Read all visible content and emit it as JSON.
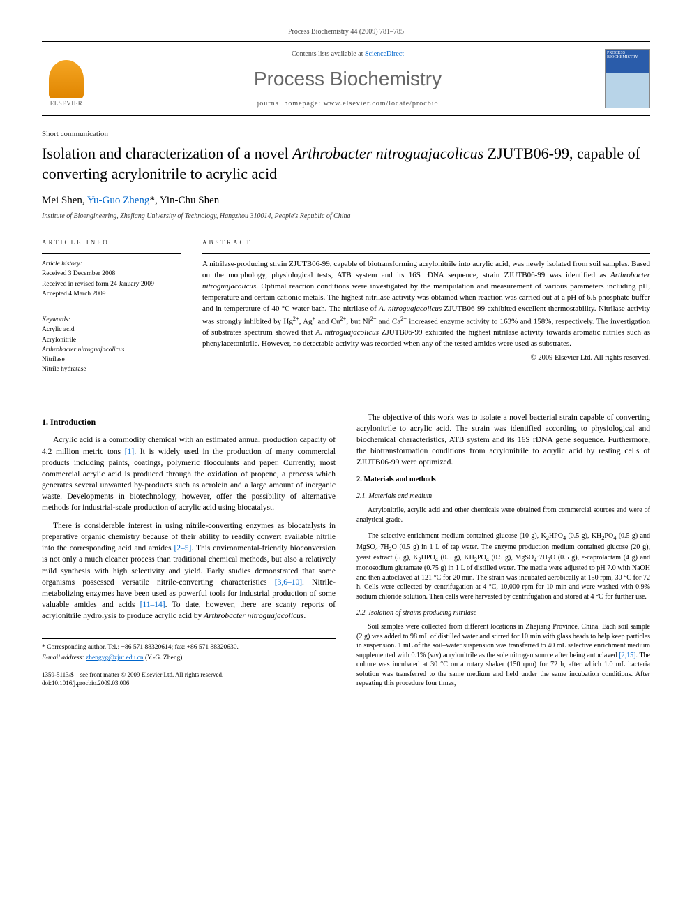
{
  "header": {
    "running_head": "Process Biochemistry 44 (2009) 781–785",
    "contents_prefix": "Contents lists available at ",
    "contents_link": "ScienceDirect",
    "journal_name": "Process Biochemistry",
    "homepage_prefix": "journal homepage: ",
    "homepage_url": "www.elsevier.com/locate/procbio",
    "elsevier_label": "ELSEVIER",
    "cover_label": "PROCESS BIOCHEMISTRY"
  },
  "article": {
    "type": "Short communication",
    "title_html": "Isolation and characterization of a novel <em>Arthrobacter nitroguajacolicus</em> ZJUTB06-99, capable of converting acrylonitrile to acrylic acid",
    "authors_html": "Mei Shen, <a href=\"#\">Yu-Guo Zheng</a>*, Yin-Chu Shen",
    "affiliation": "Institute of Bioengineering, Zhejiang University of Technology, Hangzhou 310014, People's Republic of China"
  },
  "article_info": {
    "heading": "ARTICLE INFO",
    "history_label": "Article history:",
    "received": "Received 3 December 2008",
    "revised": "Received in revised form 24 January 2009",
    "accepted": "Accepted 4 March 2009",
    "keywords_label": "Keywords:",
    "keywords": [
      "Acrylic acid",
      "Acrylonitrile",
      "Arthrobacter nitroguajacolicus",
      "Nitrilase",
      "Nitrile hydratase"
    ]
  },
  "abstract": {
    "heading": "ABSTRACT",
    "text_html": "A nitrilase-producing strain ZJUTB06-99, capable of biotransforming acrylonitrile into acrylic acid, was newly isolated from soil samples. Based on the morphology, physiological tests, ATB system and its 16S rDNA sequence, strain ZJUTB06-99 was identified as <em>Arthrobacter nitroguajacolicus</em>. Optimal reaction conditions were investigated by the manipulation and measurement of various parameters including pH, temperature and certain cationic metals. The highest nitrilase activity was obtained when reaction was carried out at a pH of 6.5 phosphate buffer and in temperature of 40 °C water bath. The nitrilase of <em>A. nitroguajacolicus</em> ZJUTB06-99 exhibited excellent thermostability. Nitrilase activity was strongly inhibited by Hg<sup>2+</sup>, Ag<sup>+</sup> and Cu<sup>2+</sup>, but Ni<sup>2+</sup> and Ca<sup>2+</sup> increased enzyme activity to 163% and 158%, respectively. The investigation of substrates spectrum showed that <em>A. nitroguajacolicus</em> ZJUTB06-99 exhibited the highest nitrilase activity towards aromatic nitriles such as phenylacetonitrile. However, no detectable activity was recorded when any of the tested amides were used as substrates.",
    "copyright": "© 2009 Elsevier Ltd. All rights reserved."
  },
  "body": {
    "intro_head": "1. Introduction",
    "intro_p1_html": "Acrylic acid is a commodity chemical with an estimated annual production capacity of 4.2 million metric tons <span class=\"ref\">[1]</span>. It is widely used in the production of many commercial products including paints, coatings, polymeric flocculants and paper. Currently, most commercial acrylic acid is produced through the oxidation of propene, a process which generates several unwanted by-products such as acrolein and a large amount of inorganic waste. Developments in biotechnology, however, offer the possibility of alternative methods for industrial-scale production of acrylic acid using biocatalyst.",
    "intro_p2_html": "There is considerable interest in using nitrile-converting enzymes as biocatalysts in preparative organic chemistry because of their ability to readily convert available nitrile into the corresponding acid and amides <span class=\"ref\">[2–5]</span>. This environmental-friendly bioconversion is not only a much cleaner process than traditional chemical methods, but also a relatively mild synthesis with high selectivity and yield. Early studies demonstrated that some organisms possessed versatile nitrile-converting characteristics <span class=\"ref\">[3,6–10]</span>. Nitrile-metabolizing enzymes have been used as powerful tools for industrial production of some valuable amides and acids <span class=\"ref\">[11–14]</span>. To date, however, there are scanty reports of acrylonitrile hydrolysis to produce acrylic acid by <em>Arthrobacter nitroguajacolicus</em>.",
    "intro_p3_html": "The objective of this work was to isolate a novel bacterial strain capable of converting acrylonitrile to acrylic acid. The strain was identified according to physiological and biochemical characteristics, ATB system and its 16S rDNA gene sequence. Furthermore, the biotransformation conditions from acrylonitrile to acrylic acid by resting cells of ZJUTB06-99 were optimized.",
    "methods_head": "2. Materials and methods",
    "sub21_head": "2.1. Materials and medium",
    "sub21_p1": "Acrylonitrile, acrylic acid and other chemicals were obtained from commercial sources and were of analytical grade.",
    "sub21_p2_html": "The selective enrichment medium contained glucose (10 g), K<sub>2</sub>HPO<sub>4</sub> (0.5 g), KH<sub>2</sub>PO<sub>4</sub> (0.5 g) and MgSO<sub>4</sub>·7H<sub>2</sub>O (0.5 g) in 1 L of tap water. The enzyme production medium contained glucose (20 g), yeast extract (5 g), K<sub>2</sub>HPO<sub>4</sub> (0.5 g), KH<sub>2</sub>PO<sub>4</sub> (0.5 g), MgSO<sub>4</sub>·7H<sub>2</sub>O (0.5 g), ε-caprolactam (4 g) and monosodium glutamate (0.75 g) in 1 L of distilled water. The media were adjusted to pH 7.0 with NaOH and then autoclaved at 121 °C for 20 min. The strain was incubated aerobically at 150 rpm, 30 °C for 72 h. Cells were collected by centrifugation at 4 °C, 10,000 rpm for 10 min and were washed with 0.9% sodium chloride solution. Then cells were harvested by centrifugation and stored at 4 °C for further use.",
    "sub22_head": "2.2. Isolation of strains producing nitrilase",
    "sub22_p1_html": "Soil samples were collected from different locations in Zhejiang Province, China. Each soil sample (2 g) was added to 98 mL of distilled water and stirred for 10 min with glass beads to help keep particles in suspension. 1 mL of the soil–water suspension was transferred to 40 mL selective enrichment medium supplemented with 0.1% (v/v) acrylonitrile as the sole nitrogen source after being autoclaved <span class=\"ref\">[2,15]</span>. The culture was incubated at 30 °C on a rotary shaker (150 rpm) for 72 h, after which 1.0 mL bacteria solution was transferred to the same medium and held under the same incubation conditions. After repeating this procedure four times,"
  },
  "footer": {
    "corresp_label": "* Corresponding author. Tel.: +86 571 88320614; fax: +86 571 88320630.",
    "email_label": "E-mail address: ",
    "email": "zhengyg@zjut.edu.cn",
    "email_suffix": " (Y.-G. Zheng).",
    "issn_line": "1359-5113/$ – see front matter © 2009 Elsevier Ltd. All rights reserved.",
    "doi_line": "doi:10.1016/j.procbio.2009.03.006"
  },
  "colors": {
    "link": "#0066cc",
    "text": "#000000",
    "muted": "#444444",
    "elsevier_orange": "#e08500",
    "cover_blue": "#2a5caa"
  }
}
